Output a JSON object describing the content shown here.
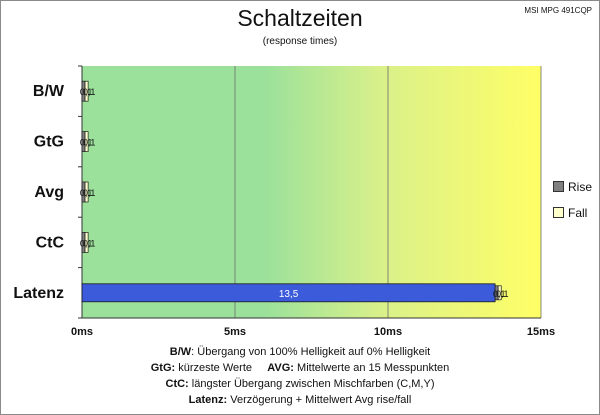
{
  "header": {
    "title": "Schaltzeiten",
    "subtitle": "(response times)",
    "monitor": "MSI MPG 491CQP"
  },
  "legend": {
    "rise": "Rise",
    "fall": "Fall"
  },
  "notes": {
    "bw_key": "B/W",
    "bw_text": ":  Übergang von 100% Helligkeit auf 0% Helligkeit",
    "gtg_key": "GtG:",
    "gtg_text": " kürzeste  Werte",
    "avg_key": "AVG:",
    "avg_text": " Mittelwerte an 15 Messpunkten",
    "ctc_key": "CtC:",
    "ctc_text": " längster Übergang zwischen Mischfarben (C,M,Y)",
    "lat_key": "Latenz:",
    "lat_text": " Verzögerung  + Mittelwert Avg rise/fall"
  },
  "chart_data": {
    "type": "bar",
    "orientation": "horizontal",
    "stacked": true,
    "categories": [
      "B/W",
      "GtG",
      "Avg",
      "CtC",
      "Latenz"
    ],
    "x_ticks": [
      "0ms",
      "5ms",
      "10ms",
      "15ms"
    ],
    "xlim": [
      0,
      15
    ],
    "grid": true,
    "legend_position": "right",
    "background_gradient": [
      "#9be19b",
      "#d9f08a",
      "#ffff66"
    ],
    "latency_bar": {
      "category": "Latenz",
      "value": 13.5,
      "label": "13,5",
      "color": "#3b5bdb"
    },
    "series": [
      {
        "name": "Rise",
        "color": "#7f7f7f",
        "values": [
          0.1,
          0.1,
          0.1,
          0.1,
          0.1
        ],
        "labels": [
          "0,1",
          "0,1",
          "0,1",
          "0,1",
          "0,1"
        ]
      },
      {
        "name": "Fall",
        "color": "#ffffcc",
        "values": [
          0.1,
          0.1,
          0.1,
          0.1,
          0.1
        ],
        "labels": [
          "0,1",
          "0,1",
          "0,1",
          "0,1",
          "0,1"
        ]
      }
    ]
  }
}
